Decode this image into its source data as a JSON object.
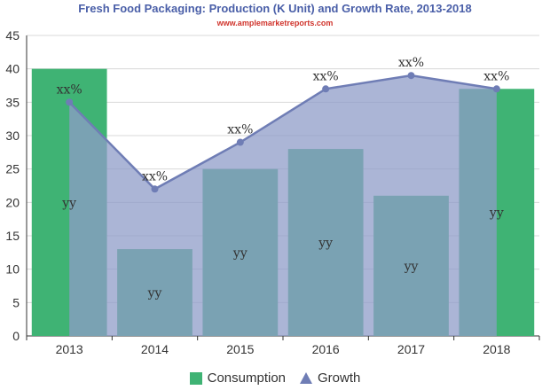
{
  "chart_data": {
    "type": "bar",
    "title": "Fresh Food Packaging: Production (K Unit) and Growth Rate, 2013-2018",
    "subtitle": "www.amplemarketreports.com",
    "categories": [
      "2013",
      "2014",
      "2015",
      "2016",
      "2017",
      "2018"
    ],
    "ylim": [
      0,
      45
    ],
    "yticks": [
      "0",
      "5",
      "10",
      "15",
      "20",
      "25",
      "30",
      "35",
      "40",
      "45"
    ],
    "grid": true,
    "legend_position": "bottom",
    "series": [
      {
        "name": "Consumption",
        "type": "bar",
        "color": "#3fb374",
        "values": [
          40,
          13,
          25,
          28,
          21,
          37
        ],
        "labels": [
          "yy",
          "yy",
          "yy",
          "yy",
          "yy",
          "yy"
        ]
      },
      {
        "name": "Growth",
        "type": "area",
        "color": "#6f7db5",
        "fill": "#8f9cc8",
        "values": [
          35,
          22,
          29,
          37,
          39,
          37
        ],
        "labels": [
          "xx%",
          "xx%",
          "xx%",
          "xx%",
          "xx%",
          "xx%"
        ]
      }
    ]
  }
}
